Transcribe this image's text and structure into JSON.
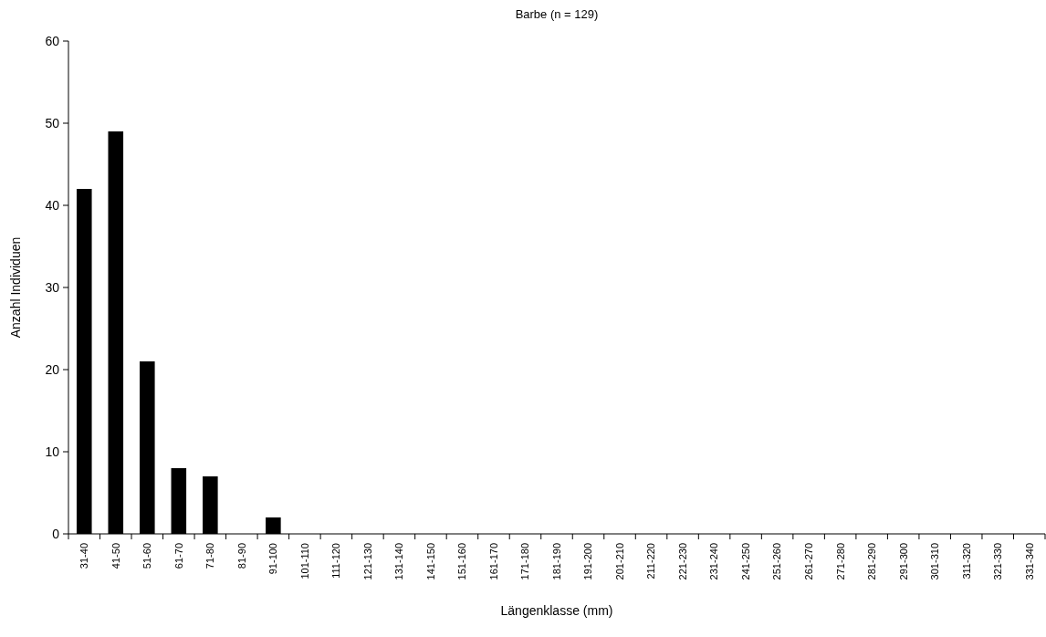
{
  "chart_data": {
    "type": "bar",
    "title": "Barbe (n = 129)",
    "xlabel": "Längenklasse (mm)",
    "ylabel": "Anzahl Individuen",
    "categories": [
      "31-40",
      "41-50",
      "51-60",
      "61-70",
      "71-80",
      "81-90",
      "91-100",
      "101-110",
      "111-120",
      "121-130",
      "131-140",
      "141-150",
      "151-160",
      "161-170",
      "171-180",
      "181-190",
      "191-200",
      "201-210",
      "211-220",
      "221-230",
      "231-240",
      "241-250",
      "251-260",
      "261-270",
      "271-280",
      "281-290",
      "291-300",
      "301-310",
      "311-320",
      "321-330",
      "331-340"
    ],
    "values": [
      42,
      49,
      21,
      8,
      7,
      0,
      2,
      0,
      0,
      0,
      0,
      0,
      0,
      0,
      0,
      0,
      0,
      0,
      0,
      0,
      0,
      0,
      0,
      0,
      0,
      0,
      0,
      0,
      0,
      0,
      0
    ],
    "color": "#000000",
    "ylim": [
      0,
      60
    ],
    "yticks": [
      0,
      10,
      20,
      30,
      40,
      50,
      60
    ],
    "grid": false
  }
}
